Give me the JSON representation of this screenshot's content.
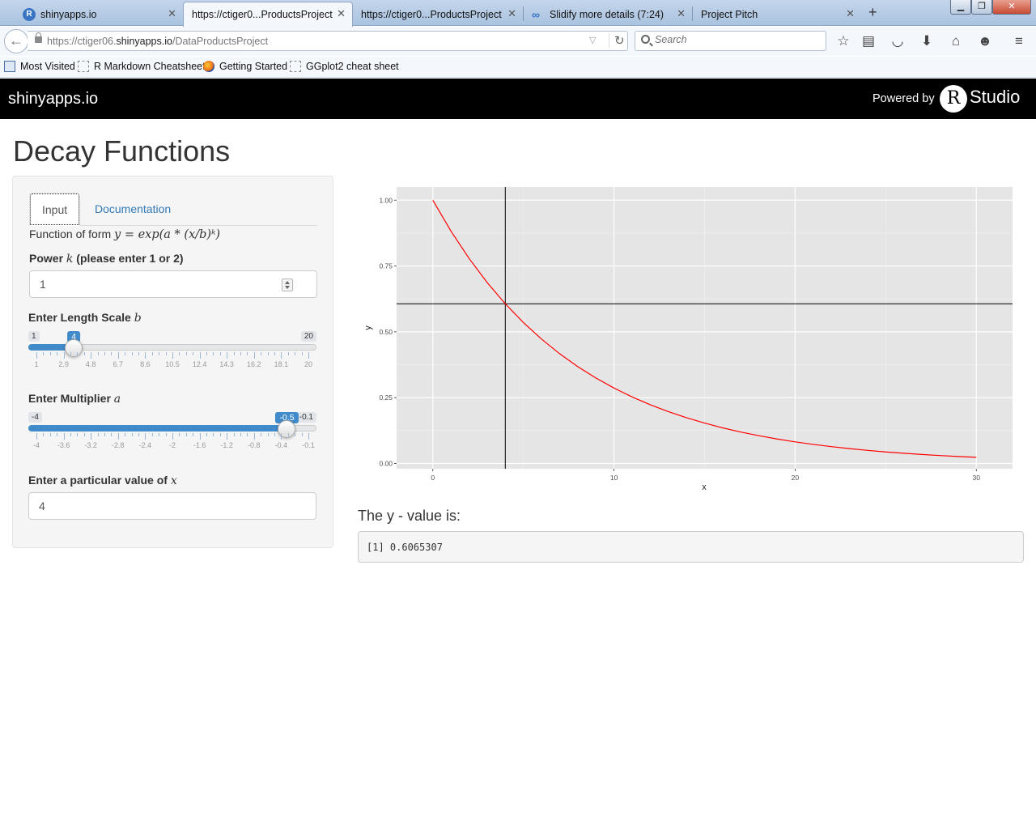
{
  "browser": {
    "tabs": [
      {
        "title": "shinyapps.io",
        "icon": "r-icon"
      },
      {
        "title": "https://ctiger0...ProductsProject",
        "icon": "none",
        "active": true
      },
      {
        "title": "https://ctiger0...ProductsProject",
        "icon": "none"
      },
      {
        "title": "Slidify more details (7:24)",
        "icon": "infinity-icon"
      },
      {
        "title": "Project Pitch",
        "icon": "none"
      }
    ],
    "url_prefix": "https://ctiger06.",
    "url_domain": "shinyapps.io",
    "url_path": "/DataProductsProject",
    "search_placeholder": "Search",
    "bookmarks": [
      {
        "label": "Most Visited",
        "icon": "most-visited-icon"
      },
      {
        "label": "R Markdown Cheatsheet",
        "icon": "page-icon"
      },
      {
        "label": "Getting Started",
        "icon": "firefox-icon"
      },
      {
        "label": "GGplot2 cheat sheet",
        "icon": "page-icon"
      }
    ]
  },
  "appbar": {
    "brand": "shinyapps.io",
    "powered_by": "Powered by",
    "logo_letter": "R",
    "logo_text": "Studio"
  },
  "page": {
    "title": "Decay Functions"
  },
  "sidebar": {
    "tabs": [
      {
        "label": "Input",
        "active": true
      },
      {
        "label": "Documentation",
        "active": false
      }
    ],
    "function_text": "Function of form",
    "formula": "y = exp(a * (x/b)ᵏ)",
    "power": {
      "label": "Power",
      "var": "k",
      "hint": "(please enter 1 or 2)",
      "value": "1"
    },
    "length_scale": {
      "label": "Enter Length Scale",
      "var": "b",
      "min": 1,
      "max": 20,
      "value": 4,
      "min_label": "1",
      "max_label": "20",
      "value_label": "4",
      "ticks": [
        "1",
        "2.9",
        "4.8",
        "6.7",
        "8.6",
        "10.5",
        "12.4",
        "14.3",
        "16.2",
        "18.1",
        "20"
      ]
    },
    "multiplier": {
      "label": "Enter Multiplier",
      "var": "a",
      "min": -4,
      "max": -0.1,
      "value": -0.5,
      "min_label": "-4",
      "max_label": "-0.1",
      "value_label": "-0.5",
      "ticks": [
        "-4",
        "-3.6",
        "-3.2",
        "-2.8",
        "-2.4",
        "-2",
        "-1.6",
        "-1.2",
        "-0.8",
        "-0.4",
        "-0.1"
      ]
    },
    "x_value": {
      "label": "Enter a particular value of",
      "var": "x",
      "value": "4"
    }
  },
  "chart_data": {
    "type": "line",
    "xlabel": "x",
    "ylabel": "y",
    "xlim": [
      -2,
      32
    ],
    "ylim": [
      -0.02,
      1.05
    ],
    "x_ticks": [
      "0",
      "10",
      "20",
      "30"
    ],
    "y_ticks": [
      "0.00",
      "0.25",
      "0.50",
      "0.75",
      "1.00"
    ],
    "series": [
      {
        "color": "#ff0000",
        "x": [
          0,
          1,
          2,
          3,
          4,
          5,
          6,
          7,
          8,
          9,
          10,
          11,
          12,
          13,
          14,
          15,
          16,
          17,
          18,
          19,
          20,
          21,
          22,
          23,
          24,
          25,
          26,
          27,
          28,
          29,
          30
        ],
        "y": [
          1.0,
          0.8825,
          0.7788,
          0.6873,
          0.6065,
          0.5353,
          0.4724,
          0.4169,
          0.3679,
          0.3247,
          0.2865,
          0.2528,
          0.2231,
          0.1969,
          0.1738,
          0.1534,
          0.1353,
          0.1194,
          0.1054,
          0.093,
          0.0821,
          0.0724,
          0.0639,
          0.0564,
          0.0498,
          0.0439,
          0.0388,
          0.0342,
          0.0302,
          0.0266,
          0.0235
        ]
      }
    ],
    "vline_x": 4,
    "hline_y": 0.6065307,
    "panel_color": "#e5e5e5",
    "grid": true
  },
  "result": {
    "label": "The y - value is:",
    "output": "[1] 0.6065307"
  }
}
